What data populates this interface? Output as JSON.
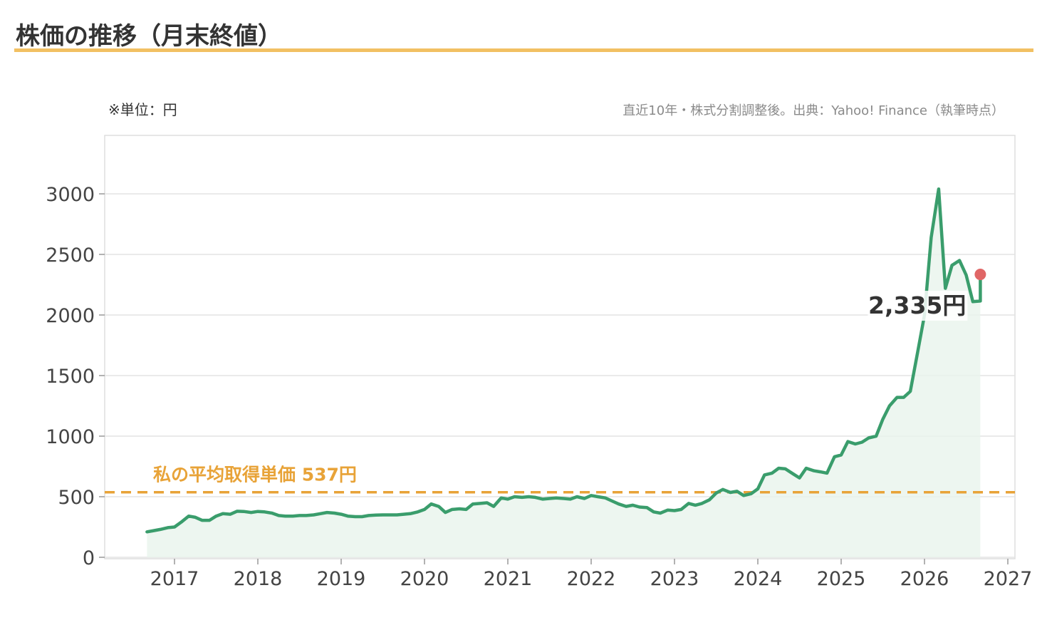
{
  "title": "株価の推移（月末終値）",
  "unit_note": "※単位：円",
  "source_note": "直近10年・株式分割調整後。出典：Yahoo! Finance（執筆時点）",
  "colors": {
    "line": "#3a9d6c",
    "area": "#e8f4ec",
    "average": "#e8a338",
    "title_underline": "#f2c063",
    "last_marker": "#e06666",
    "grid": "#e3e3e3"
  },
  "chart_data": {
    "type": "line",
    "title": "株価の推移（月末終値）",
    "unit": "円",
    "xlim": [
      2016.2,
      2027.1
    ],
    "ylim": [
      0,
      3450
    ],
    "x_ticks": [
      2017,
      2018,
      2019,
      2020,
      2021,
      2022,
      2023,
      2024,
      2025,
      2026,
      2027
    ],
    "y_ticks": [
      0,
      500,
      1000,
      1500,
      2000,
      2500,
      3000
    ],
    "grid": "horizontal",
    "average_cost": {
      "value": 537,
      "label": "私の平均取得単価 537円"
    },
    "last_value_label": "2,335円",
    "series": [
      {
        "points": [
          [
            2016.67,
            210
          ],
          [
            2016.75,
            220
          ],
          [
            2016.83,
            230
          ],
          [
            2016.92,
            245
          ],
          [
            2017.0,
            250
          ],
          [
            2017.08,
            290
          ],
          [
            2017.17,
            340
          ],
          [
            2017.25,
            330
          ],
          [
            2017.33,
            305
          ],
          [
            2017.42,
            305
          ],
          [
            2017.5,
            340
          ],
          [
            2017.58,
            360
          ],
          [
            2017.67,
            355
          ],
          [
            2017.75,
            380
          ],
          [
            2017.83,
            378
          ],
          [
            2017.92,
            370
          ],
          [
            2018.0,
            378
          ],
          [
            2018.08,
            375
          ],
          [
            2018.17,
            365
          ],
          [
            2018.25,
            345
          ],
          [
            2018.33,
            340
          ],
          [
            2018.42,
            340
          ],
          [
            2018.5,
            345
          ],
          [
            2018.58,
            345
          ],
          [
            2018.67,
            350
          ],
          [
            2018.75,
            360
          ],
          [
            2018.83,
            370
          ],
          [
            2018.92,
            365
          ],
          [
            2019.0,
            355
          ],
          [
            2019.08,
            340
          ],
          [
            2019.17,
            335
          ],
          [
            2019.25,
            335
          ],
          [
            2019.33,
            345
          ],
          [
            2019.42,
            348
          ],
          [
            2019.5,
            350
          ],
          [
            2019.58,
            350
          ],
          [
            2019.67,
            350
          ],
          [
            2019.75,
            355
          ],
          [
            2019.83,
            360
          ],
          [
            2019.92,
            375
          ],
          [
            2020.0,
            395
          ],
          [
            2020.08,
            440
          ],
          [
            2020.17,
            420
          ],
          [
            2020.25,
            370
          ],
          [
            2020.33,
            395
          ],
          [
            2020.42,
            400
          ],
          [
            2020.5,
            395
          ],
          [
            2020.58,
            440
          ],
          [
            2020.67,
            445
          ],
          [
            2020.75,
            450
          ],
          [
            2020.83,
            420
          ],
          [
            2020.92,
            490
          ],
          [
            2021.0,
            480
          ],
          [
            2021.08,
            500
          ],
          [
            2021.17,
            495
          ],
          [
            2021.25,
            500
          ],
          [
            2021.33,
            495
          ],
          [
            2021.42,
            480
          ],
          [
            2021.5,
            485
          ],
          [
            2021.58,
            490
          ],
          [
            2021.67,
            485
          ],
          [
            2021.75,
            480
          ],
          [
            2021.83,
            500
          ],
          [
            2021.92,
            485
          ],
          [
            2022.0,
            510
          ],
          [
            2022.08,
            500
          ],
          [
            2022.17,
            490
          ],
          [
            2022.25,
            465
          ],
          [
            2022.33,
            440
          ],
          [
            2022.42,
            420
          ],
          [
            2022.5,
            430
          ],
          [
            2022.58,
            415
          ],
          [
            2022.67,
            410
          ],
          [
            2022.75,
            375
          ],
          [
            2022.83,
            365
          ],
          [
            2022.92,
            390
          ],
          [
            2023.0,
            385
          ],
          [
            2023.08,
            395
          ],
          [
            2023.17,
            445
          ],
          [
            2023.25,
            430
          ],
          [
            2023.33,
            445
          ],
          [
            2023.42,
            475
          ],
          [
            2023.5,
            530
          ],
          [
            2023.58,
            560
          ],
          [
            2023.67,
            535
          ],
          [
            2023.75,
            545
          ],
          [
            2023.83,
            510
          ],
          [
            2023.92,
            525
          ],
          [
            2024.0,
            565
          ],
          [
            2024.08,
            680
          ],
          [
            2024.17,
            695
          ],
          [
            2024.25,
            735
          ],
          [
            2024.33,
            730
          ],
          [
            2024.42,
            690
          ],
          [
            2024.5,
            655
          ],
          [
            2024.58,
            735
          ],
          [
            2024.67,
            715
          ],
          [
            2024.75,
            705
          ],
          [
            2024.83,
            695
          ],
          [
            2024.92,
            830
          ],
          [
            2025.0,
            845
          ],
          [
            2025.08,
            955
          ],
          [
            2025.17,
            935
          ],
          [
            2025.25,
            950
          ],
          [
            2025.33,
            985
          ],
          [
            2025.42,
            1000
          ],
          [
            2025.5,
            1140
          ],
          [
            2025.58,
            1250
          ],
          [
            2025.67,
            1320
          ],
          [
            2025.75,
            1320
          ],
          [
            2025.83,
            1370
          ],
          [
            2025.92,
            1700
          ],
          [
            2026.0,
            2000
          ],
          [
            2026.08,
            2640
          ],
          [
            2026.17,
            3040
          ],
          [
            2026.25,
            2220
          ],
          [
            2026.33,
            2410
          ],
          [
            2026.42,
            2450
          ],
          [
            2026.5,
            2330
          ],
          [
            2026.58,
            2110
          ],
          [
            2026.67,
            2115
          ],
          [
            2026.67,
            2335
          ]
        ]
      }
    ]
  }
}
